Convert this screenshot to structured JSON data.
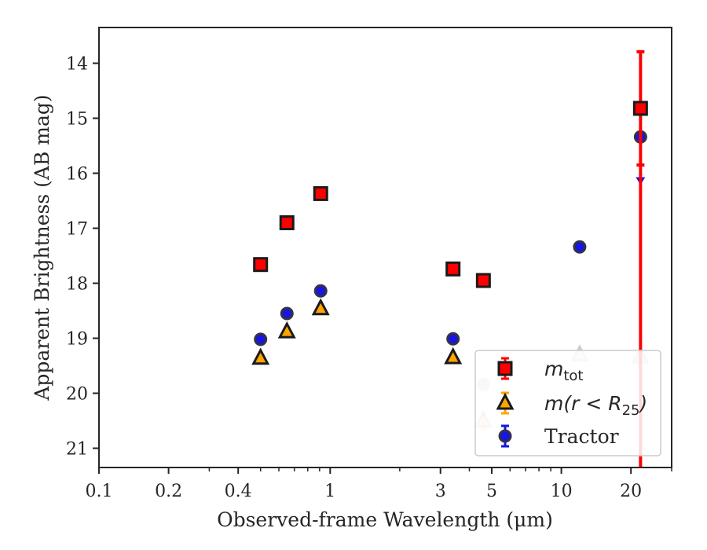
{
  "chart_data": {
    "type": "scatter",
    "xlabel": "Observed-frame Wavelength (μm)",
    "ylabel": "Apparent Brightness (AB mag)",
    "xscale": "log",
    "xlim": [
      0.1,
      30
    ],
    "ylim": [
      21.35,
      13.35
    ],
    "y_inverted": true,
    "xticks": [
      0.1,
      0.2,
      0.4,
      1,
      3,
      5,
      10,
      20
    ],
    "xtick_labels": [
      "0.1",
      "0.2",
      "0.4",
      "1",
      "3",
      "5",
      "10",
      "20"
    ],
    "yticks": [
      14,
      15,
      16,
      17,
      18,
      19,
      20,
      21
    ],
    "ytick_labels": [
      "14",
      "15",
      "16",
      "17",
      "18",
      "19",
      "20",
      "21"
    ],
    "grid": false,
    "legend_position": "lower-right",
    "series": [
      {
        "name": "m_tot",
        "legend_main": "m",
        "legend_sub": "tot",
        "marker": "square",
        "color": "#ff0000",
        "points": [
          {
            "x": 0.5,
            "y": 17.66
          },
          {
            "x": 0.65,
            "y": 16.9
          },
          {
            "x": 0.91,
            "y": 16.37
          },
          {
            "x": 3.4,
            "y": 17.74
          },
          {
            "x": 4.6,
            "y": 17.95
          },
          {
            "x": 22,
            "y": 14.82,
            "yerr": 1.03
          }
        ]
      },
      {
        "name": "m(r < R_25)",
        "legend_main": "m(r < R",
        "legend_sub": "25",
        "legend_end": ")",
        "marker": "triangle",
        "color": "#ffa500",
        "points": [
          {
            "x": 0.5,
            "y": 19.36
          },
          {
            "x": 0.65,
            "y": 18.88
          },
          {
            "x": 0.91,
            "y": 18.46
          },
          {
            "x": 3.4,
            "y": 19.35
          },
          {
            "x": 4.6,
            "y": 20.5,
            "faded": true,
            "yerr": 0.15
          },
          {
            "x": 12,
            "y": 19.3,
            "faded": true
          },
          {
            "x": 22,
            "y": 19.34,
            "faded": true
          }
        ]
      },
      {
        "name": "Tractor",
        "legend_main": "Tractor",
        "marker": "circle",
        "color": "#1515e8",
        "points": [
          {
            "x": 0.5,
            "y": 19.02,
            "yerr": 0.05
          },
          {
            "x": 0.65,
            "y": 18.55,
            "yerr": 0.05
          },
          {
            "x": 0.91,
            "y": 18.14,
            "yerr": 0.05
          },
          {
            "x": 3.4,
            "y": 19.01,
            "yerr": 0.05
          },
          {
            "x": 4.6,
            "y": 19.84,
            "faded": true
          },
          {
            "x": 12,
            "y": 17.34,
            "yerr": 0.05
          },
          {
            "x": 22,
            "y": 15.34,
            "upper_limit_to": 16.2
          }
        ]
      }
    ]
  }
}
